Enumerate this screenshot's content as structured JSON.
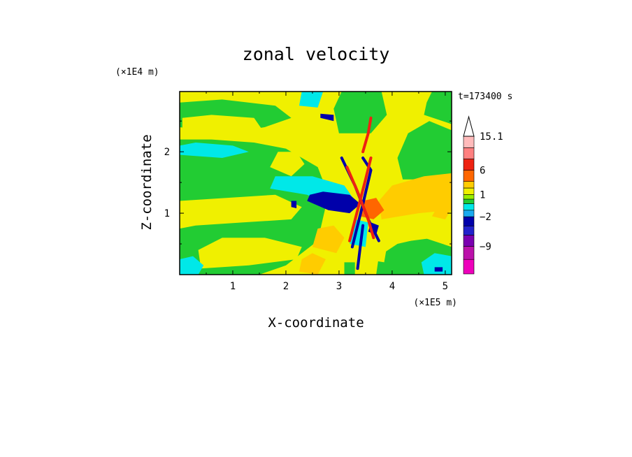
{
  "chart_data": {
    "type": "heatmap",
    "title": "zonal velocity",
    "xlabel": "X-coordinate",
    "ylabel": "Z-coordinate",
    "x_unit": "(×1E5 m)",
    "y_unit": "(×1E4 m)",
    "time_label": "t=173400 s",
    "xlim": [
      0.0,
      5.12
    ],
    "ylim": [
      0.0,
      2.98
    ],
    "xticks": [
      "1",
      "2",
      "3",
      "4",
      "5"
    ],
    "yticks": [
      "1",
      "2"
    ],
    "colorbar": {
      "label_values": [
        "15.1",
        "6",
        "1",
        "−2",
        "−9"
      ],
      "levels": [
        {
          "from": -18,
          "to": -13,
          "color": "#ee00bb"
        },
        {
          "from": -13,
          "to": -9,
          "color": "#bb11aa"
        },
        {
          "from": -9,
          "to": -6,
          "color": "#7a00b0"
        },
        {
          "from": -6,
          "to": -4,
          "color": "#2222cc"
        },
        {
          "from": -4,
          "to": -2,
          "color": "#0000aa"
        },
        {
          "from": -2,
          "to": -1,
          "color": "#1aaaf0"
        },
        {
          "from": -1,
          "to": 0,
          "color": "#00e8e8"
        },
        {
          "from": 0,
          "to": 0.5,
          "color": "#22cc33"
        },
        {
          "from": 0.5,
          "to": 1,
          "color": "#99ee00"
        },
        {
          "from": 1,
          "to": 2,
          "color": "#f0f000"
        },
        {
          "from": 2,
          "to": 3,
          "color": "#ffcc00"
        },
        {
          "from": 3,
          "to": 6,
          "color": "#ff6600"
        },
        {
          "from": 6,
          "to": 9,
          "color": "#ee2211"
        },
        {
          "from": 9,
          "to": 12,
          "color": "#ff8080"
        },
        {
          "from": 12,
          "to": 15.1,
          "color": "#ffbbbb"
        }
      ],
      "overflow_color": "#ffffff"
    },
    "background_color": "#f0f000",
    "regions": [
      {
        "value": 0.2,
        "points": [
          [
            0.0,
            0.0
          ],
          [
            1.5,
            0.0
          ],
          [
            2.0,
            0.15
          ],
          [
            2.6,
            0.55
          ],
          [
            2.8,
            1.3
          ],
          [
            2.6,
            1.75
          ],
          [
            2.0,
            2.05
          ],
          [
            1.4,
            2.15
          ],
          [
            0.6,
            2.2
          ],
          [
            0.0,
            2.2
          ]
        ]
      },
      {
        "value": 0.2,
        "points": [
          [
            3.7,
            0.0
          ],
          [
            5.12,
            0.0
          ],
          [
            5.12,
            0.45
          ],
          [
            4.6,
            0.6
          ],
          [
            4.1,
            0.5
          ],
          [
            3.75,
            0.3
          ]
        ]
      },
      {
        "value": 0.2,
        "points": [
          [
            4.2,
            1.55
          ],
          [
            5.12,
            1.55
          ],
          [
            5.12,
            2.35
          ],
          [
            4.7,
            2.5
          ],
          [
            4.3,
            2.3
          ],
          [
            4.1,
            1.9
          ]
        ]
      },
      {
        "value": 0.2,
        "points": [
          [
            0.0,
            2.4
          ],
          [
            0.9,
            2.3
          ],
          [
            1.6,
            2.4
          ],
          [
            2.1,
            2.55
          ],
          [
            1.8,
            2.75
          ],
          [
            0.8,
            2.85
          ],
          [
            0.0,
            2.8
          ]
        ]
      },
      {
        "value": 0.2,
        "points": [
          [
            4.6,
            2.6
          ],
          [
            5.12,
            2.45
          ],
          [
            5.12,
            2.98
          ],
          [
            4.75,
            2.98
          ],
          [
            4.65,
            2.8
          ]
        ]
      },
      {
        "value": 0.2,
        "points": [
          [
            3.0,
            2.3
          ],
          [
            3.6,
            2.3
          ],
          [
            3.9,
            2.6
          ],
          [
            3.8,
            2.98
          ],
          [
            3.05,
            2.98
          ],
          [
            2.9,
            2.7
          ]
        ]
      },
      {
        "value": 1.5,
        "points": [
          [
            0.05,
            2.35
          ],
          [
            1.0,
            2.2
          ],
          [
            1.6,
            2.3
          ],
          [
            1.4,
            2.55
          ],
          [
            0.6,
            2.6
          ],
          [
            0.05,
            2.55
          ]
        ]
      },
      {
        "value": 1.5,
        "points": [
          [
            0.0,
            1.2
          ],
          [
            0.9,
            1.25
          ],
          [
            1.8,
            1.3
          ],
          [
            2.3,
            1.1
          ],
          [
            2.1,
            0.9
          ],
          [
            1.2,
            0.85
          ],
          [
            0.3,
            0.8
          ],
          [
            0.0,
            0.75
          ]
        ]
      },
      {
        "value": 1.5,
        "points": [
          [
            0.4,
            0.1
          ],
          [
            1.3,
            0.15
          ],
          [
            2.2,
            0.25
          ],
          [
            2.3,
            0.45
          ],
          [
            1.6,
            0.6
          ],
          [
            0.8,
            0.6
          ],
          [
            0.35,
            0.4
          ]
        ]
      },
      {
        "value": 1.5,
        "points": [
          [
            3.9,
            0.5
          ],
          [
            4.8,
            0.6
          ],
          [
            5.12,
            0.7
          ],
          [
            5.12,
            1.3
          ],
          [
            4.5,
            1.25
          ],
          [
            3.95,
            1.05
          ],
          [
            3.8,
            0.75
          ]
        ]
      },
      {
        "value": 1.5,
        "points": [
          [
            3.5,
            0.25
          ],
          [
            3.85,
            0.2
          ],
          [
            3.9,
            0.45
          ],
          [
            3.55,
            0.45
          ]
        ]
      },
      {
        "value": 1.5,
        "points": [
          [
            1.7,
            1.75
          ],
          [
            2.1,
            1.6
          ],
          [
            2.35,
            1.8
          ],
          [
            2.2,
            2.0
          ],
          [
            1.85,
            2.0
          ]
        ]
      },
      {
        "value": 1.5,
        "points": [
          [
            2.2,
            2.25
          ],
          [
            2.7,
            2.2
          ],
          [
            2.95,
            2.45
          ],
          [
            2.6,
            2.6
          ],
          [
            2.2,
            2.45
          ]
        ]
      },
      {
        "value": 2.5,
        "points": [
          [
            3.8,
            0.9
          ],
          [
            4.5,
            1.0
          ],
          [
            5.12,
            1.05
          ],
          [
            5.12,
            1.65
          ],
          [
            4.6,
            1.6
          ],
          [
            4.0,
            1.45
          ],
          [
            3.75,
            1.2
          ]
        ]
      },
      {
        "value": 2.5,
        "points": [
          [
            2.5,
            0.45
          ],
          [
            2.95,
            0.35
          ],
          [
            3.1,
            0.6
          ],
          [
            2.9,
            0.8
          ],
          [
            2.6,
            0.75
          ]
        ]
      },
      {
        "value": 2.5,
        "points": [
          [
            2.25,
            0.05
          ],
          [
            2.6,
            0.0
          ],
          [
            2.75,
            0.25
          ],
          [
            2.5,
            0.35
          ],
          [
            2.3,
            0.25
          ]
        ]
      },
      {
        "value": 2.5,
        "points": [
          [
            4.75,
            0.95
          ],
          [
            5.0,
            0.9
          ],
          [
            5.1,
            1.05
          ],
          [
            4.85,
            1.1
          ]
        ]
      },
      {
        "value": 4.5,
        "points": [
          [
            3.4,
            0.95
          ],
          [
            3.65,
            0.9
          ],
          [
            3.85,
            1.05
          ],
          [
            3.7,
            1.25
          ],
          [
            3.45,
            1.2
          ]
        ]
      },
      {
        "value": -0.5,
        "points": [
          [
            1.7,
            1.4
          ],
          [
            2.4,
            1.3
          ],
          [
            3.0,
            1.05
          ],
          [
            3.3,
            1.2
          ],
          [
            3.1,
            1.45
          ],
          [
            2.5,
            1.6
          ],
          [
            1.8,
            1.6
          ]
        ]
      },
      {
        "value": -0.5,
        "points": [
          [
            0.0,
            1.95
          ],
          [
            0.8,
            1.9
          ],
          [
            1.3,
            2.0
          ],
          [
            1.0,
            2.1
          ],
          [
            0.3,
            2.15
          ],
          [
            0.0,
            2.1
          ]
        ]
      },
      {
        "value": -0.5,
        "points": [
          [
            0.0,
            0.0
          ],
          [
            0.35,
            0.0
          ],
          [
            0.45,
            0.15
          ],
          [
            0.25,
            0.3
          ],
          [
            0.0,
            0.25
          ]
        ]
      },
      {
        "value": -0.5,
        "points": [
          [
            4.6,
            0.0
          ],
          [
            5.12,
            0.0
          ],
          [
            5.12,
            0.3
          ],
          [
            4.8,
            0.35
          ],
          [
            4.55,
            0.2
          ]
        ]
      },
      {
        "value": -0.5,
        "points": [
          [
            2.25,
            2.75
          ],
          [
            2.6,
            2.72
          ],
          [
            2.7,
            2.98
          ],
          [
            2.3,
            2.98
          ]
        ]
      },
      {
        "value": -0.5,
        "points": [
          [
            3.2,
            0.5
          ],
          [
            3.5,
            0.45
          ],
          [
            3.55,
            0.85
          ],
          [
            3.3,
            0.9
          ]
        ]
      },
      {
        "value": -3,
        "points": [
          [
            2.4,
            1.2
          ],
          [
            2.8,
            1.05
          ],
          [
            3.2,
            1.0
          ],
          [
            3.4,
            1.15
          ],
          [
            3.2,
            1.3
          ],
          [
            2.7,
            1.35
          ],
          [
            2.45,
            1.3
          ]
        ]
      },
      {
        "value": -3,
        "points": [
          [
            3.55,
            0.7
          ],
          [
            3.7,
            0.65
          ],
          [
            3.75,
            0.8
          ],
          [
            3.6,
            0.85
          ]
        ]
      },
      {
        "value": -3,
        "points": [
          [
            4.8,
            0.05
          ],
          [
            4.95,
            0.05
          ],
          [
            4.95,
            0.12
          ],
          [
            4.8,
            0.12
          ]
        ]
      },
      {
        "value": -3,
        "points": [
          [
            2.65,
            2.55
          ],
          [
            2.9,
            2.5
          ],
          [
            2.9,
            2.6
          ],
          [
            2.65,
            2.62
          ]
        ]
      },
      {
        "value": -3,
        "points": [
          [
            2.1,
            1.1
          ],
          [
            2.2,
            1.08
          ],
          [
            2.2,
            1.2
          ],
          [
            2.1,
            1.2
          ]
        ]
      },
      {
        "value": 0.2,
        "points": [
          [
            3.1,
            0.0
          ],
          [
            3.3,
            0.0
          ],
          [
            3.3,
            0.2
          ],
          [
            3.1,
            0.2
          ]
        ]
      }
    ],
    "bands": [
      {
        "value": -3,
        "points": [
          [
            3.25,
            0.45
          ],
          [
            3.45,
            1.15
          ],
          [
            3.6,
            1.7
          ],
          [
            3.45,
            1.9
          ]
        ]
      },
      {
        "value": 7,
        "points": [
          [
            3.2,
            0.55
          ],
          [
            3.35,
            1.05
          ],
          [
            3.5,
            1.55
          ],
          [
            3.6,
            1.9
          ]
        ]
      },
      {
        "value": -3,
        "points": [
          [
            3.05,
            1.9
          ],
          [
            3.3,
            1.45
          ],
          [
            3.55,
            0.9
          ],
          [
            3.75,
            0.55
          ]
        ]
      },
      {
        "value": 7,
        "points": [
          [
            3.15,
            1.75
          ],
          [
            3.35,
            1.35
          ],
          [
            3.55,
            0.9
          ],
          [
            3.65,
            0.6
          ]
        ]
      },
      {
        "value": -3,
        "points": [
          [
            3.35,
            0.1
          ],
          [
            3.4,
            0.45
          ],
          [
            3.45,
            0.8
          ]
        ]
      },
      {
        "value": 7,
        "points": [
          [
            3.45,
            2.0
          ],
          [
            3.55,
            2.3
          ],
          [
            3.6,
            2.55
          ]
        ]
      }
    ]
  }
}
